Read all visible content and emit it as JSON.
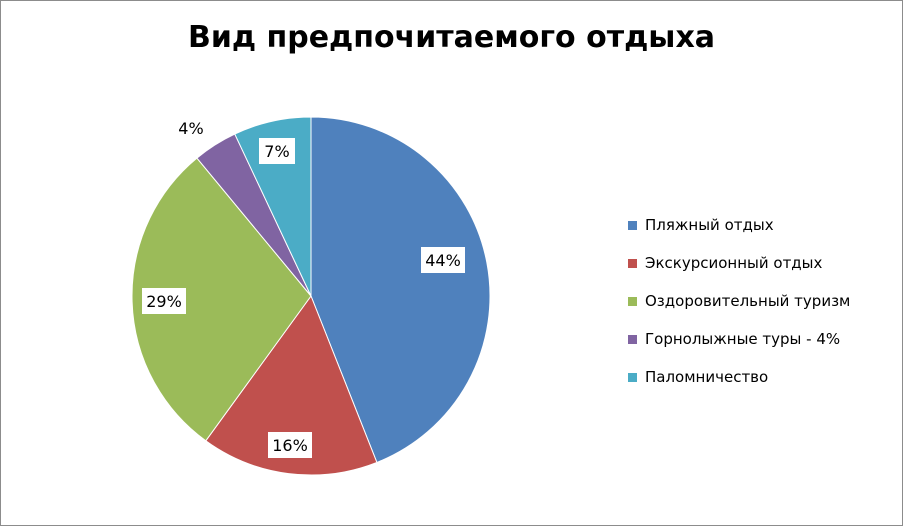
{
  "chart_data": {
    "type": "pie",
    "title": "Вид предпочитаемого отдыха",
    "legend_position": "right",
    "slices": [
      {
        "name": "Пляжный отдых",
        "value": 44,
        "label": "44%",
        "color": "#4F81BD"
      },
      {
        "name": "Экскурсионный отдых",
        "value": 16,
        "label": "16%",
        "color": "#C0504D"
      },
      {
        "name": "Оздоровительный туризм",
        "value": 29,
        "label": "29%",
        "color": "#9BBB59"
      },
      {
        "name": "Горнолыжные туры - 4%",
        "value": 4,
        "label": "4%",
        "color": "#8064A2"
      },
      {
        "name": "Паломничество",
        "value": 7,
        "label": "7%",
        "color": "#4BACC6"
      }
    ]
  }
}
